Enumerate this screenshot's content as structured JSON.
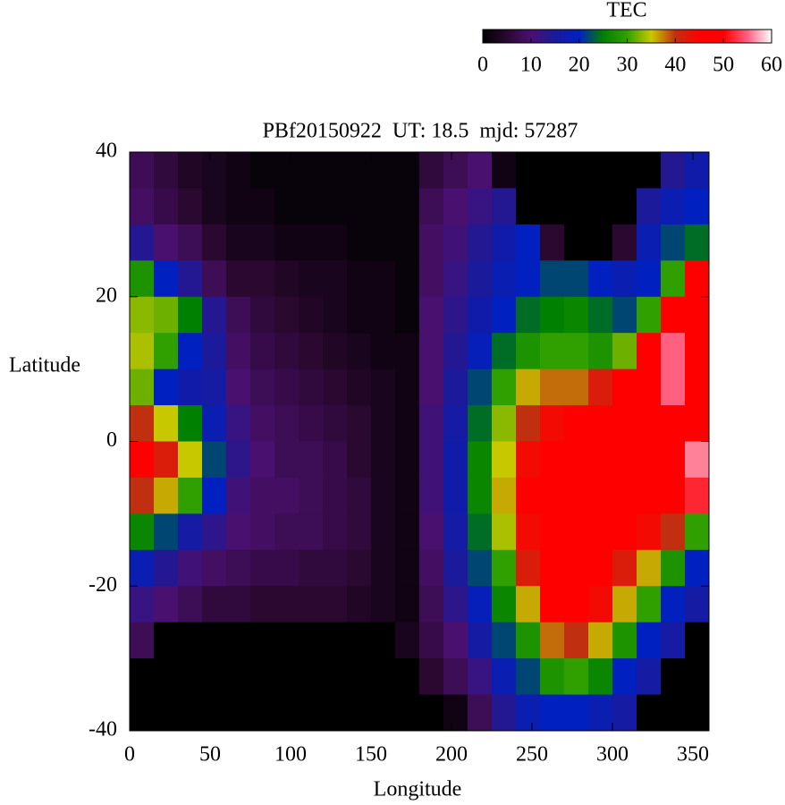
{
  "chart_data": {
    "type": "heatmap",
    "title": "PBf20150922  UT: 18.5  mjd: 57287",
    "xlabel": "Longitude",
    "ylabel": "Latitude",
    "xlim": [
      0,
      360
    ],
    "ylim": [
      -40,
      40
    ],
    "xticks": [
      0,
      50,
      100,
      150,
      200,
      250,
      300,
      350
    ],
    "yticks": [
      -40,
      -20,
      0,
      20,
      40
    ],
    "x": [
      7.5,
      22.5,
      37.5,
      52.5,
      67.5,
      82.5,
      97.5,
      112.5,
      127.5,
      142.5,
      157.5,
      172.5,
      187.5,
      202.5,
      217.5,
      232.5,
      247.5,
      262.5,
      277.5,
      292.5,
      307.5,
      322.5,
      337.5,
      352.5
    ],
    "y": [
      37.5,
      32.5,
      27.5,
      22.5,
      17.5,
      12.5,
      7.5,
      2.5,
      -2.5,
      -7.5,
      -12.5,
      -17.5,
      -22.5,
      -27.5,
      -32.5,
      -37.5
    ],
    "z": [
      [
        8,
        6,
        4,
        3,
        2,
        1,
        1,
        1,
        1,
        1,
        1,
        1,
        6,
        8,
        10,
        2,
        0,
        0,
        0,
        0,
        0,
        0,
        14,
        17
      ],
      [
        9,
        7,
        5,
        3,
        2,
        2,
        1,
        1,
        1,
        1,
        1,
        1,
        8,
        10,
        12,
        14,
        0,
        0,
        0,
        0,
        0,
        15,
        18,
        20
      ],
      [
        14,
        10,
        8,
        5,
        3,
        3,
        2,
        2,
        2,
        1,
        1,
        1,
        9,
        11,
        14,
        17,
        20,
        5,
        0,
        0,
        5,
        18,
        22,
        24
      ],
      [
        28,
        20,
        14,
        8,
        5,
        5,
        4,
        3,
        3,
        2,
        2,
        1,
        9,
        12,
        15,
        18,
        20,
        22,
        22,
        20,
        18,
        20,
        30,
        45
      ],
      [
        33,
        32,
        25,
        14,
        8,
        6,
        5,
        4,
        3,
        2,
        2,
        1,
        10,
        13,
        17,
        20,
        24,
        25,
        26,
        24,
        22,
        30,
        48,
        50
      ],
      [
        34,
        30,
        20,
        15,
        9,
        7,
        6,
        5,
        4,
        3,
        2,
        2,
        10,
        14,
        19,
        24,
        28,
        30,
        30,
        28,
        32,
        45,
        55,
        48
      ],
      [
        32,
        20,
        17,
        16,
        10,
        8,
        7,
        6,
        5,
        4,
        3,
        2,
        10,
        15,
        22,
        30,
        36,
        38,
        38,
        42,
        48,
        50,
        55,
        46
      ],
      [
        40,
        35,
        25,
        18,
        12,
        9,
        8,
        7,
        6,
        5,
        3,
        2,
        11,
        16,
        24,
        33,
        40,
        44,
        46,
        48,
        50,
        50,
        48,
        50
      ],
      [
        48,
        42,
        35,
        22,
        13,
        10,
        8,
        8,
        7,
        5,
        3,
        2,
        11,
        17,
        26,
        35,
        44,
        48,
        50,
        50,
        48,
        50,
        50,
        56
      ],
      [
        40,
        36,
        30,
        20,
        11,
        9,
        9,
        8,
        7,
        6,
        3,
        2,
        11,
        17,
        26,
        36,
        45,
        48,
        48,
        48,
        47,
        48,
        48,
        52
      ],
      [
        26,
        22,
        16,
        13,
        10,
        9,
        8,
        8,
        7,
        6,
        3,
        2,
        10,
        16,
        24,
        34,
        44,
        46,
        47,
        47,
        46,
        44,
        40,
        30
      ],
      [
        18,
        14,
        11,
        9,
        8,
        7,
        7,
        6,
        6,
        5,
        3,
        2,
        9,
        15,
        22,
        30,
        42,
        45,
        46,
        46,
        42,
        36,
        28,
        20
      ],
      [
        12,
        10,
        8,
        6,
        6,
        5,
        5,
        5,
        5,
        4,
        3,
        2,
        8,
        13,
        19,
        26,
        36,
        45,
        46,
        44,
        36,
        30,
        20,
        16
      ],
      [
        8,
        0,
        0,
        0,
        0,
        0,
        0,
        0,
        0,
        0,
        0,
        3,
        7,
        10,
        16,
        22,
        28,
        38,
        40,
        36,
        28,
        20,
        16,
        0
      ],
      [
        0,
        0,
        0,
        0,
        0,
        0,
        0,
        0,
        0,
        0,
        0,
        0,
        5,
        8,
        12,
        18,
        22,
        28,
        30,
        26,
        20,
        16,
        0,
        0
      ],
      [
        0,
        0,
        0,
        0,
        0,
        0,
        0,
        0,
        0,
        0,
        0,
        0,
        0,
        2,
        8,
        14,
        18,
        20,
        20,
        18,
        16,
        0,
        0,
        0
      ]
    ],
    "colorbar": {
      "title": "TEC",
      "clim": [
        0,
        60
      ],
      "ticks": [
        0,
        10,
        20,
        30,
        40,
        50,
        60
      ],
      "colors": [
        "#000000",
        "#2a0830",
        "#4a1070",
        "#1a1a9a",
        "#0020c0",
        "#008000",
        "#30a000",
        "#c8c800",
        "#c03010",
        "#ff0000",
        "#ff0000",
        "#ff6080",
        "#ffffff"
      ]
    }
  }
}
